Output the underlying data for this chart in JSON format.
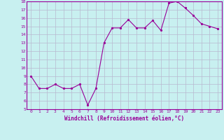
{
  "x": [
    0,
    1,
    2,
    3,
    4,
    5,
    6,
    7,
    8,
    9,
    10,
    11,
    12,
    13,
    14,
    15,
    16,
    17,
    18,
    19,
    20,
    21,
    22,
    23
  ],
  "y": [
    9.0,
    7.5,
    7.5,
    8.0,
    7.5,
    7.5,
    8.0,
    5.5,
    7.5,
    13.0,
    14.8,
    14.8,
    15.8,
    14.8,
    14.8,
    15.7,
    14.5,
    17.8,
    18.0,
    17.2,
    16.3,
    15.3,
    15.0,
    14.7
  ],
  "line_color": "#990099",
  "marker_color": "#990099",
  "bg_color": "#c8f0f0",
  "grid_color": "#b8b8d0",
  "xlabel": "Windchill (Refroidissement éolien,°C)",
  "xlabel_color": "#990099",
  "tick_color": "#990099",
  "spine_color": "#990099",
  "ylim": [
    5,
    18
  ],
  "xlim": [
    -0.5,
    23.5
  ],
  "yticks": [
    5,
    6,
    7,
    8,
    9,
    10,
    11,
    12,
    13,
    14,
    15,
    16,
    17,
    18
  ],
  "xticks": [
    0,
    1,
    2,
    3,
    4,
    5,
    6,
    7,
    8,
    9,
    10,
    11,
    12,
    13,
    14,
    15,
    16,
    17,
    18,
    19,
    20,
    21,
    22,
    23
  ],
  "xtick_labels": [
    "0",
    "1",
    "2",
    "3",
    "4",
    "5",
    "6",
    "7",
    "8",
    "9",
    "10",
    "11",
    "12",
    "13",
    "14",
    "15",
    "16",
    "17",
    "18",
    "19",
    "20",
    "21",
    "22",
    "23"
  ],
  "ytick_labels": [
    "5",
    "6",
    "7",
    "8",
    "9",
    "10",
    "11",
    "12",
    "13",
    "14",
    "15",
    "16",
    "17",
    "18"
  ]
}
